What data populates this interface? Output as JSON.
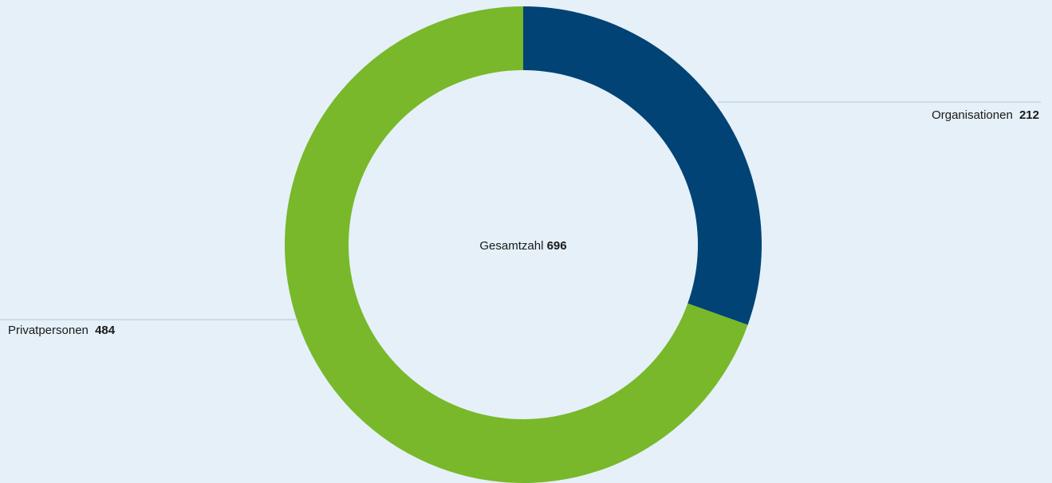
{
  "chart_data": {
    "type": "donut",
    "categories": [
      "Organisationen",
      "Privatpersonen"
    ],
    "values": [
      212,
      484
    ],
    "colors": [
      "#004374",
      "#78b82a"
    ],
    "center_label": "Gesamtzahl",
    "center_value": 696
  }
}
